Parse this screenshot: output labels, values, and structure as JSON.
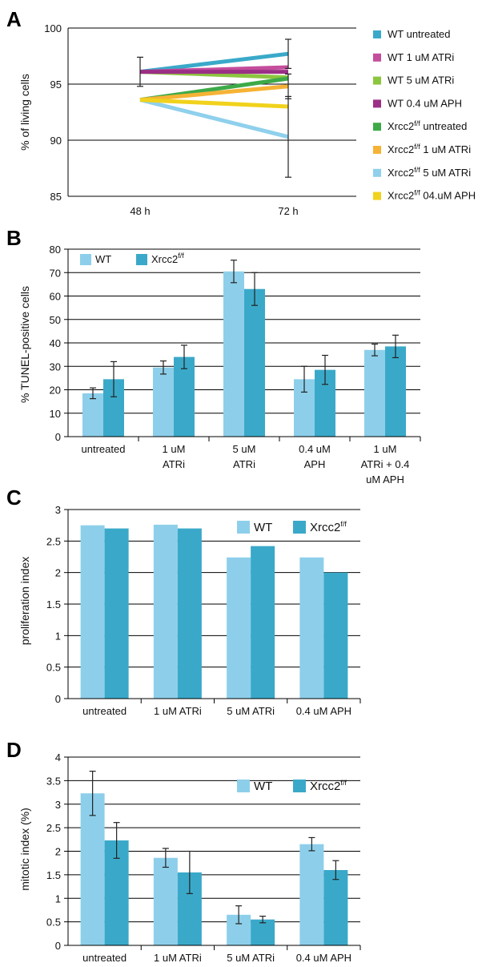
{
  "chart_data": [
    {
      "panel": "A",
      "type": "line",
      "ylabel": "% of living cells",
      "ylim": [
        85,
        100
      ],
      "yticks": [
        85,
        90,
        95,
        100
      ],
      "categories": [
        "48 h",
        "72 h"
      ],
      "grid": true,
      "legend_position": "right",
      "series": [
        {
          "name": "WT untreated",
          "base": "WT untreated",
          "sup": "",
          "color": "#3aa9c9",
          "values": [
            96.1,
            97.7
          ],
          "errors": [
            null,
            1.3
          ]
        },
        {
          "name": "WT 1 uM ATRi",
          "base": "WT 1 uM ATRi",
          "sup": "",
          "color": "#c44d9c",
          "values": [
            96.1,
            96.5
          ],
          "errors": [
            null,
            null
          ]
        },
        {
          "name": "WT 5 uM ATRi",
          "base": "WT 5 uM ATRi",
          "sup": "",
          "color": "#8cc63f",
          "values": [
            96.1,
            95.6
          ],
          "errors": [
            null,
            null
          ]
        },
        {
          "name": "WT 0.4 uM APH",
          "base": "WT 0.4 uM APH",
          "sup": "",
          "color": "#9b2f86",
          "values": [
            96.1,
            96.1
          ],
          "errors": [
            1.3,
            null
          ]
        },
        {
          "name": "Xrcc2f/f untreated",
          "base": "Xrcc2",
          "sup": "f/f",
          "rest": " untreated",
          "color": "#3daa48",
          "values": [
            93.6,
            95.5
          ],
          "errors": [
            null,
            null
          ]
        },
        {
          "name": "Xrcc2f/f 1 uM ATRi",
          "base": "Xrcc2",
          "sup": "f/f",
          "rest": " 1 uM ATRi",
          "color": "#f5b335",
          "values": [
            93.6,
            94.8
          ],
          "errors": [
            null,
            1.1
          ]
        },
        {
          "name": "Xrcc2f/f 5 uM ATRi",
          "base": "Xrcc2",
          "sup": "f/f",
          "rest": " 5 uM ATRi",
          "color": "#8fd0ec",
          "values": [
            93.6,
            90.3
          ],
          "errors": [
            null,
            3.6
          ]
        },
        {
          "name": "Xrcc2f/f 04.uM APH",
          "base": "Xrcc2",
          "sup": "f/f",
          "rest": " 04.uM APH",
          "color": "#f1d21c",
          "values": [
            93.6,
            93.0
          ],
          "errors": [
            null,
            null
          ]
        }
      ]
    },
    {
      "panel": "B",
      "type": "bar",
      "ylabel": "% TUNEL-positive cells",
      "ylim": [
        0,
        80
      ],
      "yticks": [
        0,
        10,
        20,
        30,
        40,
        50,
        60,
        70,
        80
      ],
      "categories": [
        [
          "untreated"
        ],
        [
          "1 uM",
          "ATRi"
        ],
        [
          "5 uM",
          "ATRi"
        ],
        [
          "0.4 uM",
          "APH"
        ],
        [
          "1 uM",
          "ATRi + 0.4",
          "uM APH"
        ]
      ],
      "legend_position": "top-left",
      "series": [
        {
          "name": "WT",
          "color": "#8dcfea",
          "values": [
            18.5,
            29.5,
            70.5,
            24.5,
            37
          ],
          "errors": [
            2.3,
            2.8,
            4.8,
            5.5,
            2.5
          ]
        },
        {
          "name": "Xrcc2f/f",
          "color": "#3aa9c9",
          "values": [
            24.5,
            34,
            63,
            28.5,
            38.5
          ],
          "errors": [
            7.5,
            5,
            7,
            6.2,
            4.8
          ]
        }
      ]
    },
    {
      "panel": "C",
      "type": "bar",
      "ylabel": "proliferation index",
      "ylim": [
        0,
        3
      ],
      "yticks": [
        "0",
        "0.5",
        "1",
        "1.5",
        "2",
        "2.5",
        "3"
      ],
      "categories": [
        [
          "untreated"
        ],
        [
          "1 uM ATRi"
        ],
        [
          "5 uM ATRi"
        ],
        [
          "0.4 uM APH"
        ]
      ],
      "legend_position": "top-right",
      "series": [
        {
          "name": "WT",
          "color": "#8dcfea",
          "values": [
            2.75,
            2.76,
            2.24,
            2.24
          ],
          "errors": [
            null,
            null,
            null,
            null
          ]
        },
        {
          "name": "Xrcc2f/f",
          "color": "#3aa9c9",
          "values": [
            2.7,
            2.7,
            2.42,
            2.0
          ],
          "errors": [
            null,
            null,
            null,
            null
          ]
        }
      ]
    },
    {
      "panel": "D",
      "type": "bar",
      "ylabel": "mitotic index (%)",
      "ylim": [
        0,
        4
      ],
      "yticks": [
        "0",
        "0.5",
        "1",
        "1.5",
        "2",
        "2.5",
        "3",
        "3.5",
        "4"
      ],
      "categories": [
        [
          "untreated"
        ],
        [
          "1 uM ATRi"
        ],
        [
          "5 uM ATRi"
        ],
        [
          "0.4 uM APH"
        ]
      ],
      "legend_position": "top-right",
      "series": [
        {
          "name": "WT",
          "color": "#8dcfea",
          "values": [
            3.23,
            1.86,
            0.65,
            2.15
          ],
          "errors": [
            0.47,
            0.2,
            0.19,
            0.14
          ]
        },
        {
          "name": "Xrcc2f/f",
          "color": "#3aa9c9",
          "values": [
            2.23,
            1.55,
            0.55,
            1.6
          ],
          "errors": [
            0.38,
            0.45,
            0.07,
            0.2
          ]
        }
      ]
    }
  ]
}
